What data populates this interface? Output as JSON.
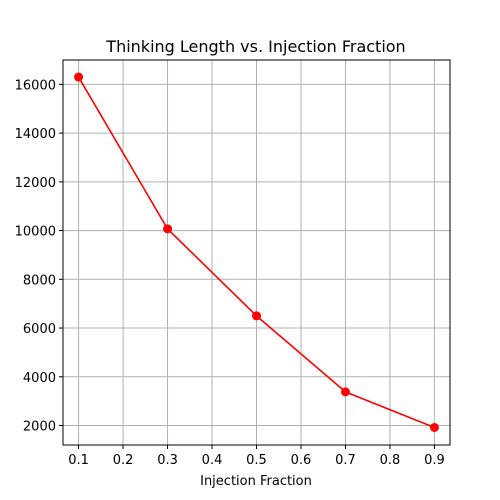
{
  "chart_data": {
    "type": "line",
    "title": "Thinking Length vs. Injection Fraction",
    "xlabel": "Injection Fraction",
    "ylabel": "",
    "x": [
      0.1,
      0.3,
      0.5,
      0.7,
      0.9
    ],
    "series": [
      {
        "values": [
          16300,
          10070,
          6500,
          3380,
          1920
        ],
        "color": "#ff0000",
        "marker": "circle"
      }
    ],
    "xlim": [
      0.065,
      0.935
    ],
    "ylim": [
      1200,
      17000
    ],
    "xticks": [
      0.1,
      0.2,
      0.3,
      0.4,
      0.5,
      0.6,
      0.7,
      0.8,
      0.9
    ],
    "xtick_labels": [
      "0.1",
      "0.2",
      "0.3",
      "0.4",
      "0.5",
      "0.6",
      "0.7",
      "0.8",
      "0.9"
    ],
    "yticks": [
      2000,
      4000,
      6000,
      8000,
      10000,
      12000,
      14000,
      16000
    ],
    "ytick_labels": [
      "2000",
      "4000",
      "6000",
      "8000",
      "10000",
      "12000",
      "14000",
      "16000"
    ],
    "grid": true
  }
}
